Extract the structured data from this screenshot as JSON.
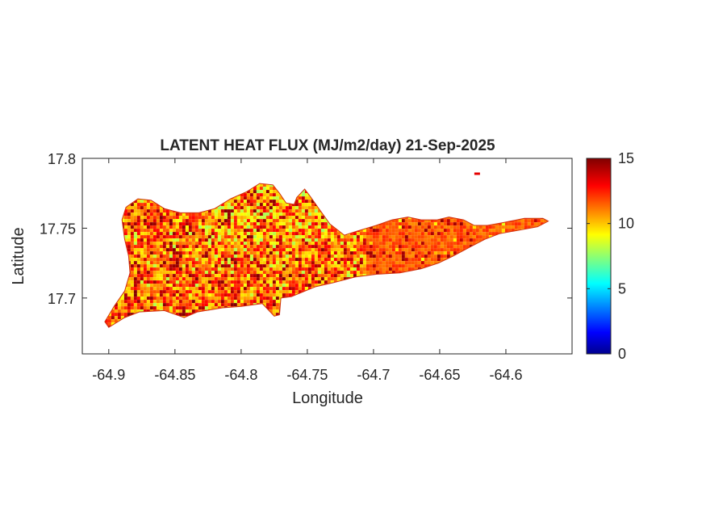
{
  "chart_data": {
    "type": "heatmap",
    "title": "LATENT HEAT FLUX (MJ/m2/day) 21-Sep-2025",
    "xlabel": "Longitude",
    "ylabel": "Latitude",
    "xlim": [
      -64.92,
      -64.55
    ],
    "ylim": [
      17.66,
      17.8
    ],
    "xticks": [
      -64.9,
      -64.85,
      -64.8,
      -64.75,
      -64.7,
      -64.65,
      -64.6
    ],
    "xtick_labels": [
      "-64.9",
      "-64.85",
      "-64.8",
      "-64.75",
      "-64.7",
      "-64.65",
      "-64.6"
    ],
    "yticks": [
      17.7,
      17.75,
      17.8
    ],
    "ytick_labels": [
      "17.7",
      "17.75",
      "17.8"
    ],
    "colorbar": {
      "colormap": "jet",
      "clim": [
        0,
        15
      ],
      "ticks": [
        0,
        5,
        10,
        15
      ],
      "tick_labels": [
        "0",
        "5",
        "10",
        "15"
      ]
    },
    "grid": false,
    "region_outline": [
      [
        -64.9,
        17.679
      ],
      [
        -64.888,
        17.686
      ],
      [
        -64.877,
        17.69
      ],
      [
        -64.858,
        17.691
      ],
      [
        -64.843,
        17.686
      ],
      [
        -64.833,
        17.69
      ],
      [
        -64.814,
        17.693
      ],
      [
        -64.8,
        17.694
      ],
      [
        -64.784,
        17.696
      ],
      [
        -64.775,
        17.687
      ],
      [
        -64.771,
        17.688
      ],
      [
        -64.77,
        17.7
      ],
      [
        -64.762,
        17.701
      ],
      [
        -64.744,
        17.708
      ],
      [
        -64.73,
        17.711
      ],
      [
        -64.714,
        17.715
      ],
      [
        -64.698,
        17.717
      ],
      [
        -64.68,
        17.718
      ],
      [
        -64.664,
        17.721
      ],
      [
        -64.651,
        17.725
      ],
      [
        -64.64,
        17.73
      ],
      [
        -64.628,
        17.736
      ],
      [
        -64.616,
        17.742
      ],
      [
        -64.605,
        17.746
      ],
      [
        -64.588,
        17.749
      ],
      [
        -64.576,
        17.751
      ],
      [
        -64.568,
        17.755
      ],
      [
        -64.572,
        17.757
      ],
      [
        -64.586,
        17.757
      ],
      [
        -64.602,
        17.754
      ],
      [
        -64.614,
        17.752
      ],
      [
        -64.624,
        17.752
      ],
      [
        -64.632,
        17.756
      ],
      [
        -64.643,
        17.758
      ],
      [
        -64.652,
        17.756
      ],
      [
        -64.664,
        17.756
      ],
      [
        -64.674,
        17.758
      ],
      [
        -64.686,
        17.756
      ],
      [
        -64.698,
        17.752
      ],
      [
        -64.712,
        17.748
      ],
      [
        -64.722,
        17.745
      ],
      [
        -64.733,
        17.753
      ],
      [
        -64.742,
        17.765
      ],
      [
        -64.748,
        17.773
      ],
      [
        -64.752,
        17.778
      ],
      [
        -64.758,
        17.772
      ],
      [
        -64.76,
        17.767
      ],
      [
        -64.766,
        17.768
      ],
      [
        -64.771,
        17.775
      ],
      [
        -64.776,
        17.781
      ],
      [
        -64.786,
        17.782
      ],
      [
        -64.796,
        17.776
      ],
      [
        -64.808,
        17.771
      ],
      [
        -64.82,
        17.764
      ],
      [
        -64.832,
        17.761
      ],
      [
        -64.846,
        17.761
      ],
      [
        -64.858,
        17.764
      ],
      [
        -64.868,
        17.77
      ],
      [
        -64.878,
        17.771
      ],
      [
        -64.887,
        17.765
      ],
      [
        -64.89,
        17.756
      ],
      [
        -64.888,
        17.742
      ],
      [
        -64.885,
        17.73
      ],
      [
        -64.884,
        17.718
      ],
      [
        -64.888,
        17.705
      ],
      [
        -64.896,
        17.694
      ],
      [
        -64.903,
        17.683
      ]
    ],
    "islet": [
      -64.622,
      17.789
    ],
    "value_range_shown": [
      8,
      15
    ]
  }
}
